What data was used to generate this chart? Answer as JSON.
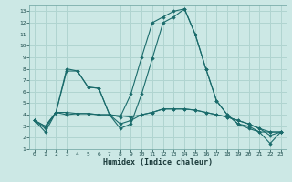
{
  "xlabel": "Humidex (Indice chaleur)",
  "xlim": [
    -0.5,
    23.5
  ],
  "ylim": [
    1,
    13.5
  ],
  "xticks": [
    0,
    1,
    2,
    3,
    4,
    5,
    6,
    7,
    8,
    9,
    10,
    11,
    12,
    13,
    14,
    15,
    16,
    17,
    18,
    19,
    20,
    21,
    22,
    23
  ],
  "yticks": [
    1,
    2,
    3,
    4,
    5,
    6,
    7,
    8,
    9,
    10,
    11,
    12,
    13
  ],
  "bg_color": "#cce8e5",
  "grid_color": "#b0d4d0",
  "line_color": "#1a6b6b",
  "series": [
    [
      3.5,
      2.5,
      4.2,
      8.0,
      7.8,
      6.4,
      6.3,
      4.0,
      3.8,
      5.8,
      9.0,
      12.0,
      12.5,
      13.0,
      13.2,
      11.0,
      8.0,
      5.2,
      4.0,
      3.2,
      3.0,
      2.5,
      1.5,
      2.5
    ],
    [
      3.5,
      2.8,
      4.2,
      7.8,
      7.8,
      6.4,
      6.3,
      4.0,
      2.8,
      3.2,
      5.8,
      8.9,
      12.0,
      12.5,
      13.2,
      11.0,
      8.0,
      5.2,
      4.0,
      3.2,
      2.8,
      2.5,
      2.5,
      2.5
    ],
    [
      3.5,
      3.0,
      4.2,
      4.2,
      4.1,
      4.1,
      4.0,
      4.0,
      3.9,
      3.8,
      4.0,
      4.2,
      4.5,
      4.5,
      4.5,
      4.4,
      4.2,
      4.0,
      3.8,
      3.5,
      3.2,
      2.8,
      2.2,
      2.5
    ],
    [
      3.5,
      3.0,
      4.2,
      4.0,
      4.1,
      4.1,
      4.0,
      4.0,
      3.2,
      3.5,
      4.0,
      4.2,
      4.5,
      4.5,
      4.5,
      4.4,
      4.2,
      4.0,
      3.8,
      3.5,
      3.2,
      2.8,
      2.5,
      2.5
    ]
  ]
}
